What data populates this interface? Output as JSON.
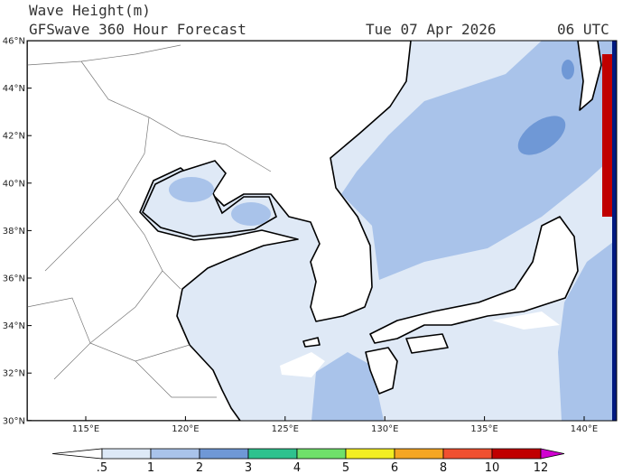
{
  "header": {
    "title": "Wave Height(m)",
    "subtitle": "GFSwave 360 Hour Forecast",
    "date": "Tue 07 Apr 2026",
    "time": "06 UTC"
  },
  "map": {
    "lat_labels": [
      "46°N",
      "44°N",
      "42°N",
      "40°N",
      "38°N",
      "36°N",
      "34°N",
      "32°N",
      "30°N"
    ],
    "lon_labels": [
      "115°E",
      "120°E",
      "125°E",
      "130°E",
      "135°E",
      "140°E"
    ]
  },
  "colorbar": {
    "labels": [
      ".5",
      "1",
      "2",
      "3",
      "4",
      "5",
      "6",
      "8",
      "10",
      "12"
    ]
  }
}
